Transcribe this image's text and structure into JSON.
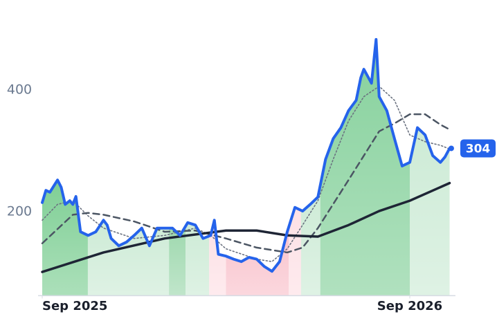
{
  "chart_data": {
    "type": "line",
    "xlim": [
      0,
      13.4
    ],
    "ylim": [
      62,
      500
    ],
    "xticks": [
      {
        "value": 0,
        "label": "Sep 2025"
      },
      {
        "value": 12,
        "label": "Sep 2026"
      }
    ],
    "yticks": [
      200,
      400
    ],
    "regimes": [
      {
        "start": 0,
        "end": 1.49,
        "color": "#7fcf95"
      },
      {
        "start": 1.49,
        "end": 4.14,
        "color": "#cdebd6"
      },
      {
        "start": 4.14,
        "end": 4.68,
        "color": "#9ed8ae"
      },
      {
        "start": 4.68,
        "end": 5.45,
        "color": "#cdebd6"
      },
      {
        "start": 5.45,
        "end": 6.0,
        "color": "#fde0e5"
      },
      {
        "start": 6.0,
        "end": 8.05,
        "color": "#f9c2cc"
      },
      {
        "start": 8.05,
        "end": 8.45,
        "color": "#fde0e5"
      },
      {
        "start": 8.45,
        "end": 9.08,
        "color": "#cdebd6"
      },
      {
        "start": 9.08,
        "end": 12.0,
        "color": "#86d19c"
      },
      {
        "start": 12.0,
        "end": 13.36,
        "color": "#cdebd6"
      }
    ],
    "series": [
      {
        "color": "#2563eb",
        "width": 4,
        "dash": "none",
        "x": [
          0,
          0.12,
          0.25,
          0.5,
          0.62,
          0.75,
          0.9,
          1,
          1.1,
          1.25,
          1.5,
          1.75,
          2,
          2.12,
          2.25,
          2.5,
          2.75,
          3,
          3.25,
          3.5,
          3.75,
          4,
          4.25,
          4.5,
          4.75,
          5,
          5.25,
          5.5,
          5.62,
          5.75,
          6,
          6.25,
          6.5,
          6.75,
          7,
          7.25,
          7.5,
          7.75,
          8,
          8.25,
          8.5,
          8.75,
          9,
          9.25,
          9.5,
          9.75,
          10,
          10.25,
          10.4,
          10.5,
          10.75,
          10.9,
          11,
          11.25,
          11.5,
          11.75,
          12,
          12.25,
          12.5,
          12.75,
          13,
          13.15,
          13.3
        ],
        "values": [
          215,
          235,
          232,
          252,
          240,
          212,
          218,
          212,
          225,
          167,
          161,
          167,
          186,
          178,
          156,
          144,
          150,
          161,
          173,
          144,
          173,
          173,
          173,
          161,
          182,
          178,
          156,
          161,
          186,
          130,
          127,
          122,
          118,
          125,
          122,
          110,
          102,
          118,
          167,
          207,
          201,
          212,
          224,
          286,
          320,
          338,
          366,
          383,
          420,
          434,
          411,
          483,
          389,
          366,
          320,
          275,
          281,
          338,
          326,
          292,
          281,
          290,
          304
        ]
      },
      {
        "color": "#1e2535",
        "width": 3.5,
        "dash": "none",
        "x": [
          0,
          2,
          4,
          6,
          7,
          8,
          9,
          10,
          11,
          12,
          13.3
        ],
        "values": [
          101,
          133,
          156,
          169,
          169,
          161,
          159,
          178,
          201,
          218,
          247
        ]
      },
      {
        "color": "#4b5563",
        "width": 2.5,
        "dash": "9 6",
        "x": [
          0,
          1,
          1.5,
          2,
          3,
          4,
          5,
          6,
          7,
          8,
          8.5,
          9,
          10,
          11,
          11.5,
          12,
          12.5,
          13,
          13.3
        ],
        "values": [
          148,
          195,
          198,
          195,
          184,
          167,
          169,
          156,
          141,
          133,
          141,
          173,
          252,
          332,
          345,
          360,
          360,
          343,
          335
        ]
      },
      {
        "color": "#6b7280",
        "width": 1.6,
        "dash": "2 3",
        "x": [
          0,
          0.5,
          1,
          1.5,
          2,
          3,
          4,
          5,
          5.5,
          6,
          7,
          7.5,
          8,
          8.5,
          9,
          9.5,
          10,
          10.5,
          11,
          11.5,
          12,
          12.5,
          13,
          13.3
        ],
        "values": [
          186,
          212,
          218,
          193,
          173,
          156,
          161,
          173,
          161,
          139,
          122,
          118,
          139,
          178,
          218,
          286,
          349,
          389,
          406,
          383,
          326,
          315,
          309,
          303
        ]
      }
    ]
  }
}
